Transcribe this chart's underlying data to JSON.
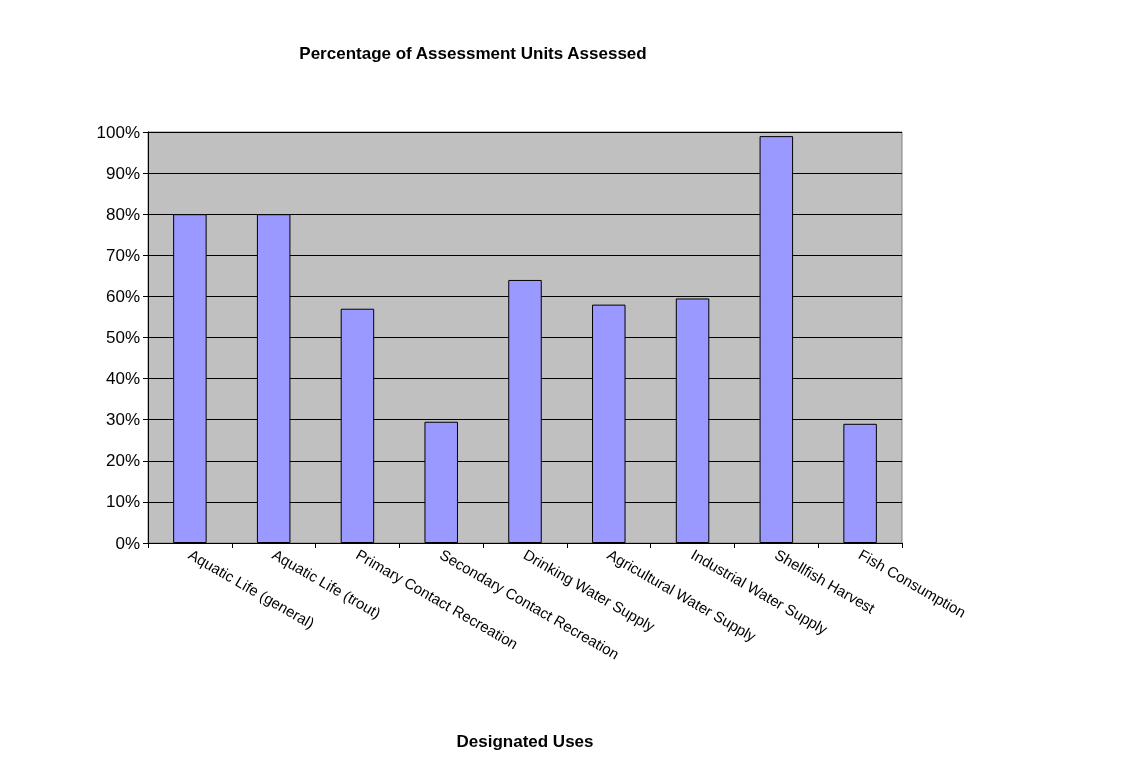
{
  "chart_data": {
    "type": "bar",
    "title": "Percentage of Assessment Units Assessed",
    "xlabel": "Designated Uses",
    "categories": [
      "Aquatic Life (general)",
      "Aquatic Life (trout)",
      "Primary Contact Recreation",
      "Secondary Contact Recreation",
      "Drinking Water Supply",
      "Agricultural Water Supply",
      "Industrial Water Supply",
      "Shellfish Harvest",
      "Fish Consumption"
    ],
    "values": [
      80,
      80,
      57,
      29.5,
      64,
      58,
      59.5,
      99,
      29
    ],
    "color": "#9999ff",
    "ylim": [
      0,
      100
    ],
    "yticks": [
      {
        "value": 0,
        "label": "0%"
      },
      {
        "value": 10,
        "label": "10%"
      },
      {
        "value": 20,
        "label": "20%"
      },
      {
        "value": 30,
        "label": "30%"
      },
      {
        "value": 40,
        "label": "40%"
      },
      {
        "value": 50,
        "label": "50%"
      },
      {
        "value": 60,
        "label": "60%"
      },
      {
        "value": 70,
        "label": "70%"
      },
      {
        "value": 80,
        "label": "80%"
      },
      {
        "value": 90,
        "label": "90%"
      },
      {
        "value": 100,
        "label": "100%"
      }
    ],
    "grid": "y"
  }
}
